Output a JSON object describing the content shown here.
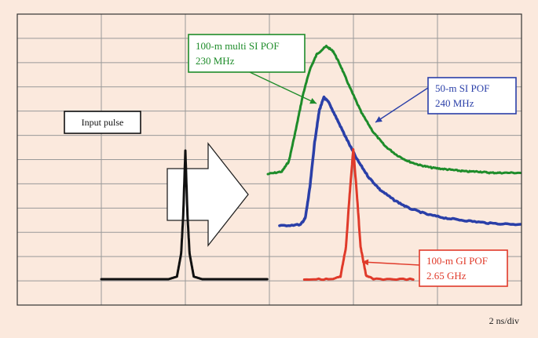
{
  "chart_data": {
    "type": "line",
    "title": "",
    "xlabel": "",
    "ylabel": "",
    "x_scale_label": "2 ns/div",
    "grid": true,
    "x_divisions": 6,
    "y_divisions": 12,
    "x_unit": "ns",
    "y_unit": "normalized amplitude",
    "series": [
      {
        "name": "Input pulse",
        "color": "#111111",
        "points": [
          [
            -4.0,
            0.0
          ],
          [
            -2.4,
            0.0
          ],
          [
            -2.2,
            0.02
          ],
          [
            -2.1,
            0.2
          ],
          [
            -2.05,
            0.5
          ],
          [
            -2.0,
            1.0
          ],
          [
            -1.95,
            0.5
          ],
          [
            -1.9,
            0.2
          ],
          [
            -1.8,
            0.02
          ],
          [
            -1.6,
            0.0
          ],
          [
            -0.05,
            0.0
          ]
        ]
      },
      {
        "name": "100-m multi SI POF",
        "annotation": "230 MHz",
        "color": "#1e8c2a",
        "points": [
          [
            0.0,
            0.0
          ],
          [
            0.6,
            0.02
          ],
          [
            0.9,
            0.1
          ],
          [
            1.2,
            0.35
          ],
          [
            1.5,
            0.62
          ],
          [
            1.8,
            0.82
          ],
          [
            2.1,
            0.94
          ],
          [
            2.5,
            1.0
          ],
          [
            2.8,
            0.96
          ],
          [
            3.1,
            0.85
          ],
          [
            3.5,
            0.68
          ],
          [
            4.0,
            0.48
          ],
          [
            4.5,
            0.33
          ],
          [
            5.0,
            0.22
          ],
          [
            5.5,
            0.15
          ],
          [
            6.0,
            0.1
          ],
          [
            6.5,
            0.07
          ],
          [
            7.0,
            0.05
          ],
          [
            7.5,
            0.04
          ],
          [
            8.0,
            0.03
          ],
          [
            8.5,
            0.02
          ],
          [
            9.0,
            0.02
          ],
          [
            9.5,
            0.01
          ],
          [
            10.0,
            0.01
          ],
          [
            10.8,
            0.01
          ]
        ]
      },
      {
        "name": "50-m SI POF",
        "annotation": "240 MHz",
        "color": "#2a3fa8",
        "points": [
          [
            0.5,
            0.0
          ],
          [
            1.4,
            0.01
          ],
          [
            1.6,
            0.06
          ],
          [
            1.8,
            0.3
          ],
          [
            2.0,
            0.65
          ],
          [
            2.2,
            0.9
          ],
          [
            2.4,
            1.0
          ],
          [
            2.6,
            0.96
          ],
          [
            2.9,
            0.85
          ],
          [
            3.3,
            0.7
          ],
          [
            3.8,
            0.52
          ],
          [
            4.3,
            0.38
          ],
          [
            4.8,
            0.28
          ],
          [
            5.4,
            0.2
          ],
          [
            6.0,
            0.14
          ],
          [
            6.8,
            0.09
          ],
          [
            7.6,
            0.06
          ],
          [
            8.5,
            0.04
          ],
          [
            9.5,
            0.02
          ],
          [
            10.8,
            0.01
          ]
        ]
      },
      {
        "name": "100-m GI POF",
        "annotation": "2.65 GHz",
        "color": "#e03a2a",
        "points": [
          [
            1.0,
            0.0
          ],
          [
            1.8,
            0.0
          ],
          [
            2.0,
            0.02
          ],
          [
            2.15,
            0.25
          ],
          [
            2.25,
            0.65
          ],
          [
            2.35,
            1.0
          ],
          [
            2.45,
            0.65
          ],
          [
            2.55,
            0.25
          ],
          [
            2.7,
            0.03
          ],
          [
            2.9,
            0.0
          ],
          [
            4.0,
            0.0
          ]
        ]
      }
    ],
    "annotations": [
      {
        "lines": [
          "Input pulse"
        ],
        "color": "#111111"
      },
      {
        "lines": [
          "100-m multi SI POF",
          "230 MHz"
        ],
        "color": "#1e8c2a"
      },
      {
        "lines": [
          "50-m SI POF",
          "240 MHz"
        ],
        "color": "#2a3fa8"
      },
      {
        "lines": [
          "100-m GI POF",
          "2.65 GHz"
        ],
        "color": "#e03a2a"
      }
    ]
  },
  "colors": {
    "background": "#fbe9dd",
    "grid": "#999999",
    "frame": "#333333",
    "arrow_fill": "#ffffff",
    "arrow_stroke": "#222222"
  }
}
